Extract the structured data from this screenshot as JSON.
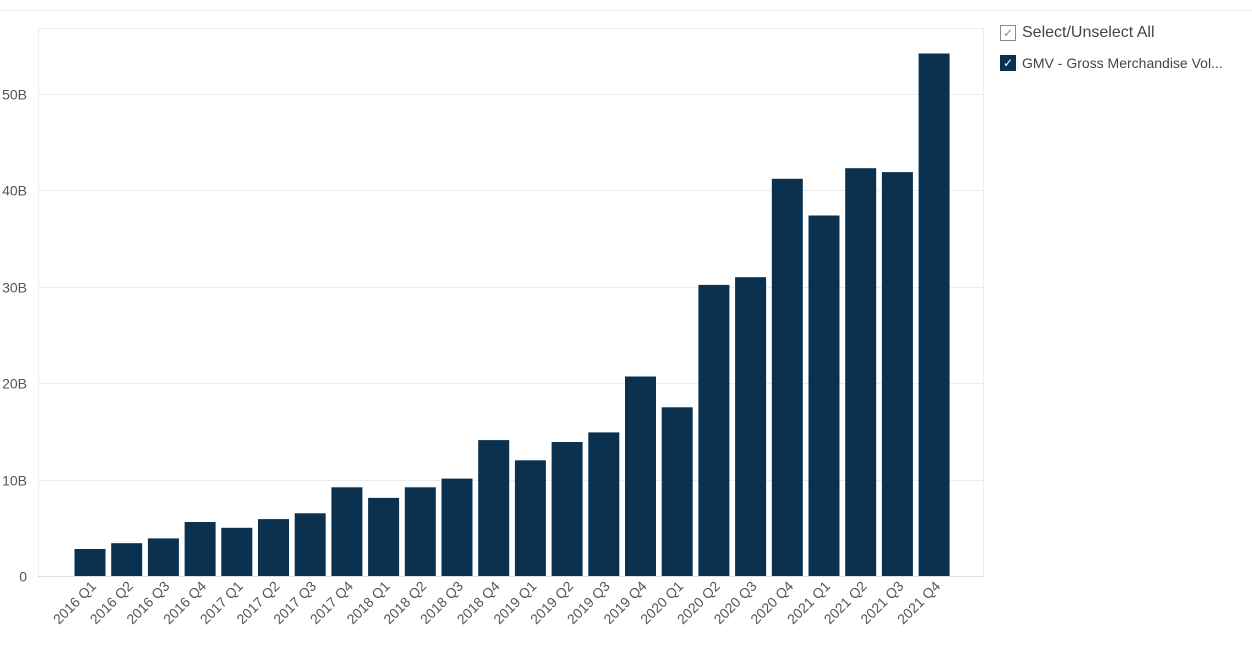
{
  "chart_data": {
    "type": "bar",
    "categories": [
      "2016 Q1",
      "2016 Q2",
      "2016 Q3",
      "2016 Q4",
      "2017 Q1",
      "2017 Q2",
      "2017 Q3",
      "2017 Q4",
      "2018 Q1",
      "2018 Q2",
      "2018 Q3",
      "2018 Q4",
      "2019 Q1",
      "2019 Q2",
      "2019 Q3",
      "2019 Q4",
      "2020 Q1",
      "2020 Q2",
      "2020 Q3",
      "2020 Q4",
      "2021 Q1",
      "2021 Q2",
      "2021 Q3",
      "2021 Q4"
    ],
    "series": [
      {
        "name": "GMV - Gross Merchandise Vol...",
        "color": "#0a3150",
        "values": [
          2.8,
          3.4,
          3.9,
          5.6,
          5.0,
          5.9,
          6.5,
          9.2,
          8.1,
          9.2,
          10.1,
          14.1,
          12.0,
          13.9,
          14.9,
          20.7,
          17.5,
          30.2,
          31.0,
          41.2,
          37.4,
          42.3,
          41.9,
          54.2
        ]
      }
    ],
    "title": "",
    "xlabel": "",
    "ylabel": "",
    "ylim": [
      0,
      56
    ],
    "yticks": [
      0,
      10,
      20,
      30,
      40,
      50
    ],
    "ytick_labels": [
      "0",
      "10B",
      "20B",
      "30B",
      "40B",
      "50B"
    ],
    "grid": true,
    "legend": "right"
  },
  "legend": {
    "select_all_label": "Select/Unselect All",
    "series_label": "GMV - Gross Merchandise Vol...",
    "check_glyph": "✓"
  },
  "colors": {
    "bar": "#0a3150",
    "grid": "#ececec",
    "axis_text": "#555555"
  }
}
